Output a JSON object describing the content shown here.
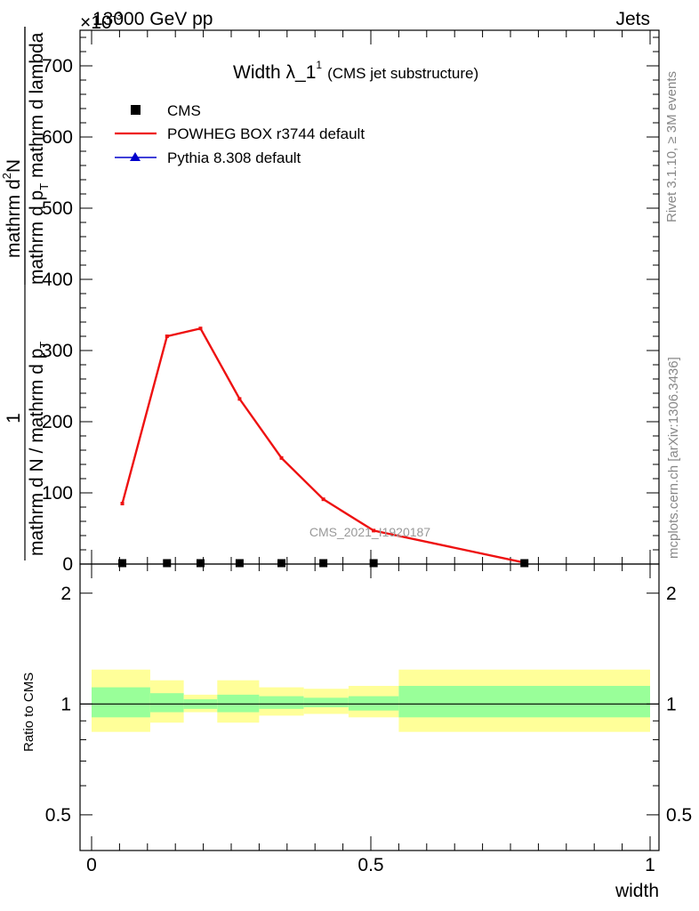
{
  "header": {
    "left": "13000 GeV pp",
    "right": "Jets",
    "exponent": "×10",
    "exponent_power": "-3"
  },
  "side_text": {
    "rivet": "Rivet 3.1.10, ≥ 3M events",
    "mcplots": "mcplots.cern.ch [arXiv:1306.3436]"
  },
  "watermark": "CMS_2021_I1920187",
  "title": {
    "main": "Width λ_1",
    "sup": "1",
    "sub": "(CMS jet substructure)"
  },
  "ylabel_top": {
    "numerator": "1",
    "denominator": "mathrm d N / mathrm d p",
    "denominator_sub": "T",
    "fraction_num": "mathrm d",
    "fraction_num_sup": "2",
    "fraction_num_end": "N",
    "fraction_den": "mathrm d p",
    "fraction_den_sub": "T",
    "fraction_den_end": " mathrm d lambda"
  },
  "ylabel_ratio": "Ratio to CMS",
  "xlabel": "width",
  "legend": [
    {
      "label": "CMS",
      "color": "#000000",
      "marker": "square"
    },
    {
      "label": "POWHEG BOX r3744 default",
      "color": "#ee1111",
      "marker": "line"
    },
    {
      "label": "Pythia 8.308 default",
      "color": "#0000cc",
      "marker": "triangle"
    }
  ],
  "chart_data": {
    "type": "line",
    "xlabel": "width",
    "ylabel": "1/(dN/dp_T) d²N/(dp_T dλ)",
    "xlim": [
      0,
      1
    ],
    "ylim": [
      0,
      750
    ],
    "y_scale_note": "×10^-3",
    "x_ticks": [
      "0",
      "0.5",
      "1"
    ],
    "y_ticks": [
      "0",
      "100",
      "200",
      "300",
      "400",
      "500",
      "600",
      "700"
    ],
    "series": [
      {
        "name": "CMS",
        "x": [
          0.055,
          0.135,
          0.195,
          0.265,
          0.34,
          0.415,
          0.505,
          0.775
        ],
        "y": [
          0,
          0,
          0,
          0,
          0,
          0,
          0,
          0
        ],
        "color": "#000000"
      },
      {
        "name": "POWHEG BOX r3744 default",
        "x": [
          0.055,
          0.135,
          0.195,
          0.265,
          0.34,
          0.415,
          0.505,
          0.775
        ],
        "y": [
          85,
          320,
          331,
          232,
          149,
          91,
          47,
          2
        ],
        "color": "#ee1111"
      }
    ],
    "ratio_panel": {
      "ylabel": "Ratio to CMS",
      "ylim": [
        0.4,
        2.4
      ],
      "y_ticks": [
        "0.5",
        "1",
        "2"
      ],
      "bins": [
        {
          "lo": 0.0,
          "hi": 0.105,
          "inner": [
            0.92,
            1.11
          ],
          "outer": [
            0.84,
            1.24
          ]
        },
        {
          "lo": 0.105,
          "hi": 0.165,
          "inner": [
            0.95,
            1.07
          ],
          "outer": [
            0.89,
            1.16
          ]
        },
        {
          "lo": 0.165,
          "hi": 0.225,
          "inner": [
            0.97,
            1.03
          ],
          "outer": [
            0.95,
            1.06
          ]
        },
        {
          "lo": 0.225,
          "hi": 0.3,
          "inner": [
            0.95,
            1.06
          ],
          "outer": [
            0.89,
            1.16
          ]
        },
        {
          "lo": 0.3,
          "hi": 0.38,
          "inner": [
            0.97,
            1.05
          ],
          "outer": [
            0.93,
            1.11
          ]
        },
        {
          "lo": 0.38,
          "hi": 0.46,
          "inner": [
            0.98,
            1.04
          ],
          "outer": [
            0.94,
            1.1
          ]
        },
        {
          "lo": 0.46,
          "hi": 0.55,
          "inner": [
            0.96,
            1.05
          ],
          "outer": [
            0.92,
            1.12
          ]
        },
        {
          "lo": 0.55,
          "hi": 1.0,
          "inner": [
            0.92,
            1.12
          ],
          "outer": [
            0.84,
            1.24
          ]
        }
      ],
      "inner_color": "#99ff99",
      "outer_color": "#ffff99"
    }
  }
}
